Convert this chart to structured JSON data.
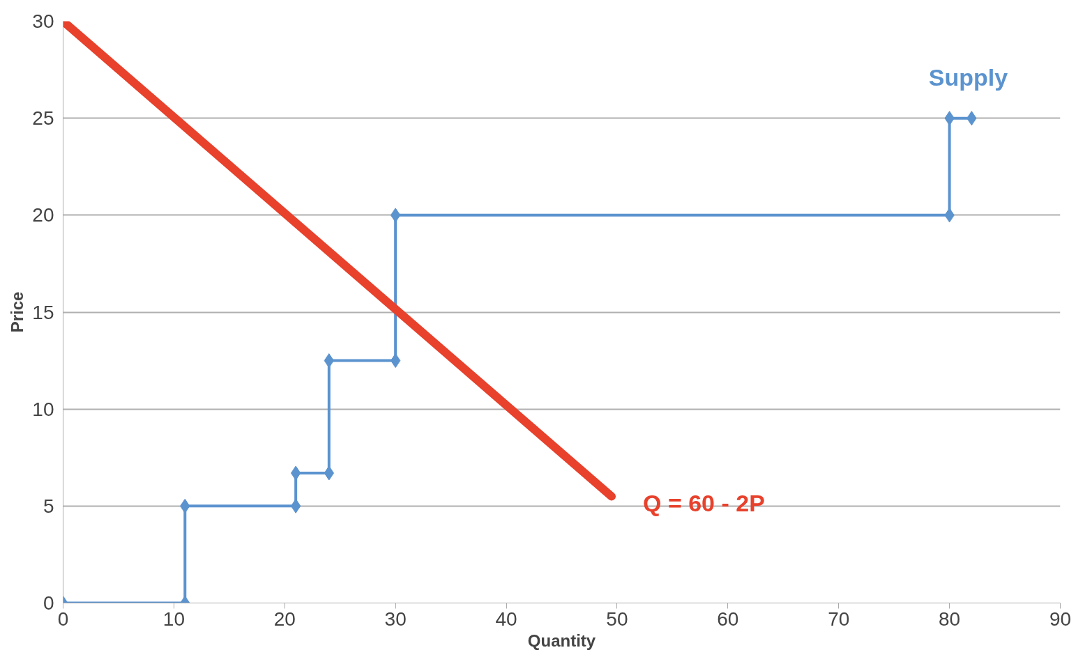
{
  "chart_data": {
    "type": "line",
    "xlabel": "Quantity",
    "ylabel": "Price",
    "xlim": [
      0,
      90
    ],
    "xticks": [
      0,
      10,
      20,
      30,
      40,
      50,
      60,
      70,
      80,
      90
    ],
    "ylim": [
      0,
      30
    ],
    "yticks": [
      0,
      5,
      10,
      15,
      20,
      25,
      30
    ],
    "grid": "y",
    "legend": false,
    "series": [
      {
        "name": "Supply",
        "color": "#5b93cf",
        "marker": "diamond",
        "x": [
          0,
          11,
          11,
          21,
          21,
          24,
          24,
          30,
          30,
          80,
          80,
          82
        ],
        "values": [
          0,
          0,
          5,
          5,
          6.7,
          6.7,
          12.5,
          12.5,
          20,
          20,
          25,
          25
        ]
      },
      {
        "name": "Q = 60 - 2P",
        "color": "#e8412c",
        "marker": "none",
        "x": [
          0,
          49.5
        ],
        "values": [
          30,
          5.5
        ]
      }
    ]
  }
}
